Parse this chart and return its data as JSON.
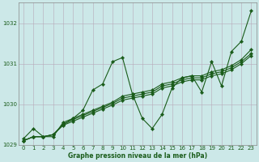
{
  "xlabel": "Graphe pression niveau de la mer (hPa)",
  "background_color": "#cce8e8",
  "grid_color": "#b8a8b8",
  "line_color": "#1a5c1a",
  "ylim": [
    1029.0,
    1032.5
  ],
  "xlim": [
    -0.5,
    23.5
  ],
  "yticks": [
    1029,
    1030,
    1031,
    1032
  ],
  "xticks": [
    0,
    1,
    2,
    3,
    4,
    5,
    6,
    7,
    8,
    9,
    10,
    11,
    12,
    13,
    14,
    15,
    16,
    17,
    18,
    19,
    20,
    21,
    22,
    23
  ],
  "series": [
    [
      1029.15,
      1029.4,
      1029.2,
      1029.2,
      1029.55,
      1029.65,
      1029.85,
      1030.35,
      1030.5,
      1031.05,
      1031.15,
      1030.25,
      1029.65,
      1029.4,
      1029.75,
      1030.4,
      1030.65,
      1030.7,
      1030.3,
      1031.05,
      1030.45,
      1031.3,
      1031.55,
      1032.3
    ],
    [
      1029.1,
      1029.2,
      1029.2,
      1029.25,
      1029.5,
      1029.65,
      1029.75,
      1029.85,
      1029.95,
      1030.05,
      1030.2,
      1030.25,
      1030.3,
      1030.35,
      1030.5,
      1030.55,
      1030.65,
      1030.7,
      1030.7,
      1030.8,
      1030.85,
      1030.95,
      1031.1,
      1031.35
    ],
    [
      1029.1,
      1029.2,
      1029.2,
      1029.25,
      1029.5,
      1029.62,
      1029.72,
      1029.82,
      1029.92,
      1030.02,
      1030.15,
      1030.2,
      1030.25,
      1030.3,
      1030.45,
      1030.5,
      1030.6,
      1030.65,
      1030.65,
      1030.75,
      1030.8,
      1030.9,
      1031.05,
      1031.25
    ],
    [
      1029.1,
      1029.2,
      1029.2,
      1029.25,
      1029.48,
      1029.58,
      1029.68,
      1029.78,
      1029.88,
      1029.98,
      1030.1,
      1030.15,
      1030.2,
      1030.25,
      1030.4,
      1030.45,
      1030.55,
      1030.6,
      1030.6,
      1030.7,
      1030.75,
      1030.85,
      1031.0,
      1031.2
    ]
  ]
}
